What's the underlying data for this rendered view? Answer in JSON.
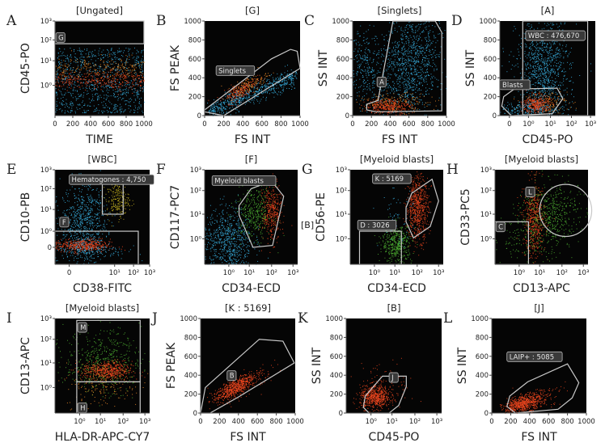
{
  "figure": {
    "description": "Flow cytometry gating strategy, 12 panels A-L",
    "between_label_F_G": "[B]"
  },
  "colors": {
    "plot_bg": "#050505",
    "population_blue": "#3ab4e6",
    "population_red": "#f0461e",
    "population_orange": "#f08c28",
    "population_green": "#50b432",
    "population_yellow": "#c8b41e",
    "gate": "#c8c8c8"
  },
  "chart_data": [
    {
      "panel": "A",
      "type": "scatter",
      "title": "[Ungated]",
      "xlabel": "TIME",
      "ylabel": "CD45-PO",
      "xscale": "linear",
      "xlim": [
        0,
        1000
      ],
      "xticks": [
        "0",
        "200",
        "400",
        "600",
        "800",
        "1000"
      ],
      "yscale": "log",
      "ylim": [
        "low",
        1000
      ],
      "yticks": [
        "10⁰",
        "10¹",
        "10²",
        "10³"
      ],
      "populations": [
        {
          "name": "all events",
          "color": "blue",
          "x_range": [
            0,
            1000
          ],
          "y_band": "below 10² (upper edge ~2×10²)"
        },
        {
          "name": "dense band",
          "color": "red/orange",
          "x_range": [
            0,
            1000
          ],
          "y_center": "~2-3"
        }
      ],
      "gates": [
        {
          "label": "G",
          "shape": "rectangle",
          "x": [
            0,
            1000
          ],
          "y": [
            "~2×10²",
            1000
          ]
        }
      ]
    },
    {
      "panel": "B",
      "type": "scatter",
      "title": "[G]",
      "xlabel": "FS INT",
      "ylabel": "FS PEAK",
      "xscale": "linear",
      "xlim": [
        0,
        1000
      ],
      "xticks": [
        "0",
        "200",
        "400",
        "600",
        "800",
        "1000"
      ],
      "yscale": "linear",
      "ylim": [
        0,
        1000
      ],
      "yticks": [
        "0",
        "200",
        "400",
        "600",
        "800",
        "1000"
      ],
      "gates": [
        {
          "label": "Singlets",
          "shape": "polygon",
          "vertices": [
            [
              0,
              60
            ],
            [
              0,
              40
            ],
            [
              200,
              0
            ],
            [
              1000,
              500
            ],
            [
              970,
              680
            ],
            [
              900,
              700
            ],
            [
              700,
              600
            ]
          ]
        }
      ]
    },
    {
      "panel": "C",
      "type": "scatter",
      "title": "[Singlets]",
      "xlabel": "FS INT",
      "ylabel": "SS INT",
      "xscale": "linear",
      "xlim": [
        0,
        1000
      ],
      "xticks": [
        "0",
        "200",
        "400",
        "600",
        "800",
        "1000"
      ],
      "yscale": "linear",
      "ylim": [
        0,
        1000
      ],
      "yticks": [
        "0",
        "200",
        "400",
        "600",
        "800",
        "1000"
      ],
      "gates": [
        {
          "label": "A",
          "shape": "polygon",
          "vertices": [
            [
              150,
              60
            ],
            [
              150,
              120
            ],
            [
              270,
              160
            ],
            [
              430,
              1000
            ],
            [
              880,
              1000
            ],
            [
              950,
              880
            ],
            [
              950,
              50
            ],
            [
              250,
              40
            ]
          ]
        }
      ]
    },
    {
      "panel": "D",
      "type": "scatter",
      "title": "[A]",
      "xlabel": "CD45-PO",
      "ylabel": "SS INT",
      "xscale": "log",
      "xticks": [
        "0",
        "10⁰",
        "10¹",
        "10²",
        "10³"
      ],
      "yscale": "linear",
      "ylim": [
        0,
        1000
      ],
      "yticks": [
        "0",
        "200",
        "400",
        "600",
        "800",
        "1000"
      ],
      "gates": [
        {
          "label": "WBC : 476,670",
          "shape": "rectangle",
          "x": [
            "~8×10⁻¹",
            "~5×10²"
          ],
          "y": [
            0,
            1000
          ]
        },
        {
          "label": "Blasts",
          "shape": "polygon"
        }
      ]
    },
    {
      "panel": "E",
      "type": "scatter",
      "title": "[WBC]",
      "xlabel": "CD38-FITC",
      "ylabel": "CD10-PB",
      "xscale": "log",
      "xticks": [
        "0",
        "10¹",
        "10²",
        "10³"
      ],
      "yscale": "log",
      "yticks": [
        "0",
        "10⁰",
        "10¹",
        "10²",
        "10³"
      ],
      "gates": [
        {
          "label": "Hematogones : 4,750",
          "shape": "rectangle",
          "color_of_population": "yellow"
        },
        {
          "label": "F",
          "shape": "rectangle"
        }
      ]
    },
    {
      "panel": "F",
      "type": "scatter",
      "title": "[F]",
      "xlabel": "CD34-ECD",
      "ylabel": "CD117-PC7",
      "xscale": "log",
      "xticks": [
        "10⁰",
        "10¹",
        "10²",
        "10³"
      ],
      "yscale": "log",
      "yticks": [
        "10⁰",
        "10¹",
        "10²",
        "10³"
      ],
      "gates": [
        {
          "label": "Myeloid blasts",
          "shape": "polygon"
        }
      ]
    },
    {
      "panel": "G",
      "type": "scatter",
      "title": "[Myeloid blasts]",
      "xlabel": "CD34-ECD",
      "ylabel": "CD56-PE",
      "xscale": "log",
      "xticks": [
        "10⁰",
        "10¹",
        "10²",
        "10³"
      ],
      "yscale": "log",
      "yticks": [
        "10⁰",
        "10¹",
        "10²",
        "10³"
      ],
      "gates": [
        {
          "label": "K : 5169",
          "shape": "polygon",
          "color_of_population": "red"
        },
        {
          "label": "D : 3026",
          "shape": "rectangle",
          "color_of_population": "green"
        }
      ]
    },
    {
      "panel": "H",
      "type": "scatter",
      "title": "[Myeloid blasts]",
      "xlabel": "CD13-APC",
      "ylabel": "CD33-PC5",
      "xscale": "log",
      "xticks": [
        "10⁰",
        "10¹",
        "10²",
        "10³"
      ],
      "yscale": "log",
      "yticks": [
        "10⁰",
        "10¹",
        "10²",
        "10³"
      ],
      "gates": [
        {
          "label": "L",
          "shape": "ellipse"
        },
        {
          "label": "C",
          "shape": "rectangle"
        }
      ]
    },
    {
      "panel": "I",
      "type": "scatter",
      "title": "[Myeloid blasts]",
      "xlabel": "HLA-DR-APC-CY7",
      "ylabel": "CD13-APC",
      "xscale": "log",
      "xticks": [
        "10⁰",
        "10¹",
        "10²",
        "10³"
      ],
      "yscale": "log",
      "yticks": [
        "10⁰",
        "10¹",
        "10²",
        "10³"
      ],
      "gates": [
        {
          "label": "H",
          "shape": "rectangle"
        },
        {
          "label": "M",
          "shape": "rectangle"
        }
      ]
    },
    {
      "panel": "J",
      "type": "scatter",
      "title": "[K : 5169]",
      "xlabel": "FS INT",
      "ylabel": "FS PEAK",
      "xscale": "linear",
      "xlim": [
        0,
        1000
      ],
      "xticks": [
        "0",
        "200",
        "400",
        "600",
        "800",
        "1000"
      ],
      "yscale": "linear",
      "ylim": [
        0,
        1000
      ],
      "yticks": [
        "0",
        "200",
        "400",
        "600",
        "800",
        "1000"
      ],
      "gates": [
        {
          "label": "B",
          "shape": "polygon",
          "vertices": [
            [
              0,
              0
            ],
            [
              50,
              270
            ],
            [
              620,
              780
            ],
            [
              870,
              760
            ],
            [
              990,
              530
            ],
            [
              400,
              170
            ],
            [
              100,
              0
            ]
          ]
        }
      ]
    },
    {
      "panel": "K",
      "type": "scatter",
      "title": "[B]",
      "xlabel": "CD45-PO",
      "ylabel": "SS INT",
      "xscale": "log",
      "xticks": [
        "10⁰",
        "10¹",
        "10²",
        "10³"
      ],
      "yscale": "linear",
      "ylim": [
        0,
        1000
      ],
      "yticks": [
        "0",
        "200",
        "400",
        "600",
        "800",
        "1000"
      ],
      "gates": [
        {
          "label": "J",
          "shape": "polygon"
        }
      ]
    },
    {
      "panel": "L",
      "type": "scatter",
      "title": "[J]",
      "xlabel": "FS INT",
      "ylabel": "SS INT",
      "xscale": "linear",
      "xlim": [
        0,
        1000
      ],
      "xticks": [
        "0",
        "200",
        "400",
        "600",
        "800",
        "1000"
      ],
      "yscale": "linear",
      "ylim": [
        0,
        1000
      ],
      "yticks": [
        "0",
        "200",
        "400",
        "600",
        "800",
        "1000"
      ],
      "gates": [
        {
          "label": "LAIP+ : 5085",
          "shape": "polygon",
          "vertices": [
            [
              160,
              70
            ],
            [
              190,
              180
            ],
            [
              380,
              330
            ],
            [
              800,
              520
            ],
            [
              920,
              320
            ],
            [
              850,
              160
            ],
            [
              700,
              40
            ],
            [
              250,
              10
            ]
          ]
        }
      ]
    }
  ]
}
